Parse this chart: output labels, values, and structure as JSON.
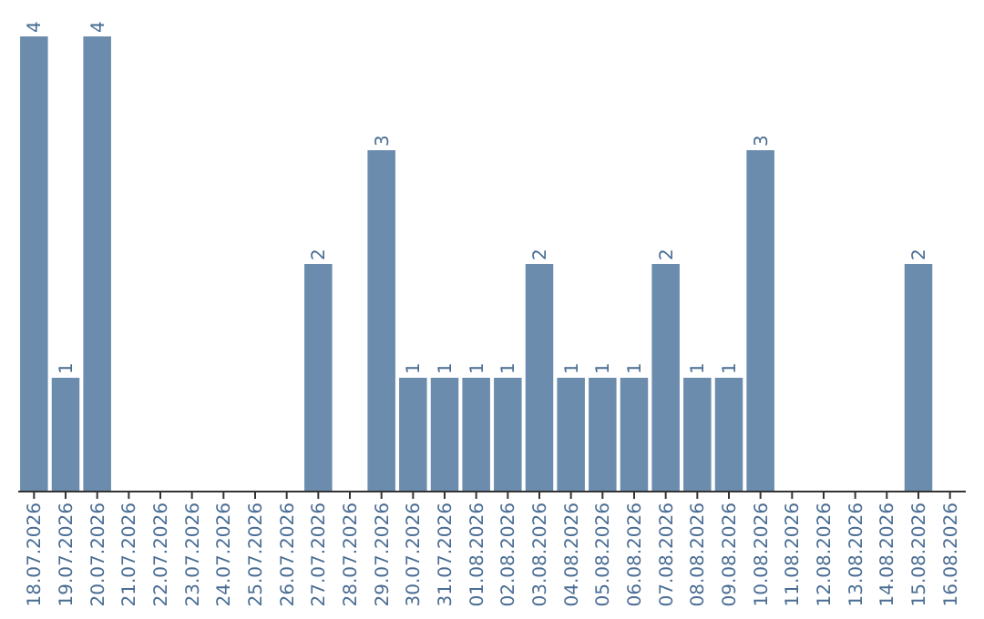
{
  "chart_data": {
    "type": "bar",
    "categories": [
      "18.07.2026",
      "19.07.2026",
      "20.07.2026",
      "21.07.2026",
      "22.07.2026",
      "23.07.2026",
      "24.07.2026",
      "25.07.2026",
      "26.07.2026",
      "27.07.2026",
      "28.07.2026",
      "29.07.2026",
      "30.07.2026",
      "31.07.2026",
      "01.08.2026",
      "02.08.2026",
      "03.08.2026",
      "04.08.2026",
      "05.08.2026",
      "06.08.2026",
      "07.08.2026",
      "08.08.2026",
      "09.08.2026",
      "10.08.2026",
      "11.08.2026",
      "12.08.2026",
      "13.08.2026",
      "14.08.2026",
      "15.08.2026",
      "16.08.2026"
    ],
    "values": [
      4,
      1,
      4,
      0,
      0,
      0,
      0,
      0,
      0,
      2,
      0,
      3,
      1,
      1,
      1,
      1,
      2,
      1,
      1,
      1,
      2,
      1,
      1,
      3,
      0,
      0,
      0,
      0,
      2,
      0
    ],
    "value_labels": [
      "4",
      "1",
      "4",
      null,
      null,
      null,
      null,
      null,
      null,
      "2",
      null,
      "3",
      "1",
      "1",
      "1",
      "1",
      "2",
      "1",
      "1",
      "1",
      "2",
      "1",
      "1",
      "3",
      null,
      null,
      null,
      null,
      "2",
      null
    ],
    "color": "#6b8cad",
    "ylim": [
      0,
      4
    ]
  }
}
